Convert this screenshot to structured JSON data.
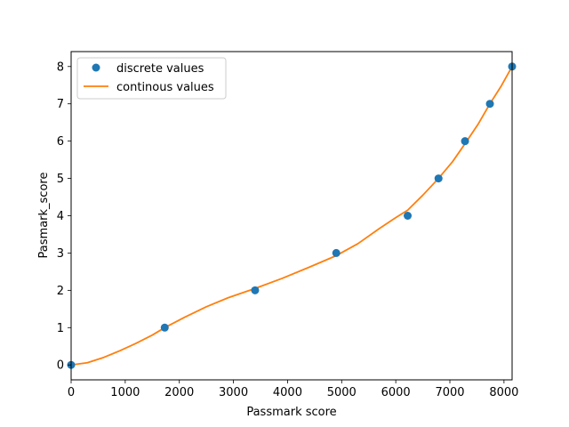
{
  "chart_data": {
    "type": "scatter",
    "title": "",
    "xlabel": "Passmark score",
    "ylabel": "Pasmark_score",
    "xlim": [
      0,
      8150
    ],
    "ylim": [
      -0.4,
      8.4
    ],
    "xticks": [
      0,
      1000,
      2000,
      3000,
      4000,
      5000,
      6000,
      7000,
      8000
    ],
    "yticks": [
      0,
      1,
      2,
      3,
      4,
      5,
      6,
      7,
      8
    ],
    "grid": false,
    "legend": "upper-left",
    "series": [
      {
        "name": "discrete values",
        "type": "scatter",
        "color": "#1f77b4",
        "x": [
          0,
          1730,
          3400,
          4900,
          6220,
          6790,
          7280,
          7740,
          8150
        ],
        "y": [
          0,
          1,
          2,
          3,
          4,
          5,
          6,
          7,
          8
        ]
      },
      {
        "name": "continous values",
        "type": "line",
        "color": "#ff7f0e",
        "x": [
          0,
          300,
          600,
          900,
          1200,
          1500,
          1730,
          2100,
          2500,
          2900,
          3400,
          3900,
          4400,
          4900,
          5300,
          5700,
          6000,
          6220,
          6500,
          6790,
          7050,
          7280,
          7520,
          7740,
          7950,
          8150
        ],
        "y": [
          0,
          0.06,
          0.2,
          0.38,
          0.58,
          0.8,
          1.0,
          1.28,
          1.56,
          1.8,
          2.05,
          2.32,
          2.62,
          2.93,
          3.25,
          3.66,
          3.95,
          4.15,
          4.55,
          5.0,
          5.45,
          5.93,
          6.45,
          7.0,
          7.48,
          8.0
        ]
      }
    ]
  }
}
